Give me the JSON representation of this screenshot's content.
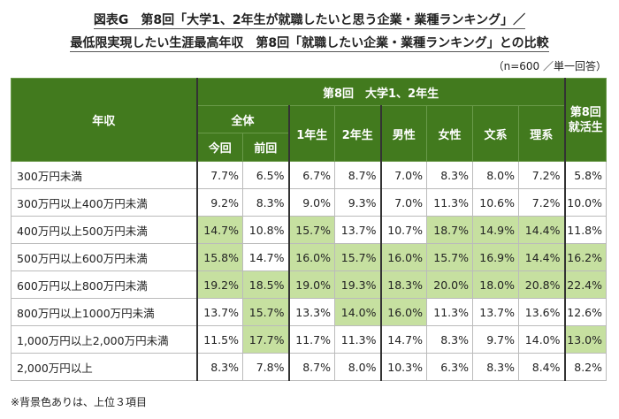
{
  "title_line1": "図表G　第8回「大学1、2年生が就職したいと思う企業・業種ランキング」／",
  "title_line2": "最低限実現したい生涯最高年収　第8回「就職したい企業・業種ランキング」との比較",
  "sample_note": "（n=600 ／単一回答）",
  "header": {
    "row_label": "年収",
    "group": "第8回　大学1、2年生",
    "overall": "全体",
    "current": "今回",
    "previous": "前回",
    "columns": [
      "1年生",
      "2年生",
      "男性",
      "女性",
      "文系",
      "理系"
    ],
    "job_hunting": "第8回就活生"
  },
  "colors": {
    "header": "#427a1e",
    "highlight": "#c6e0a0"
  },
  "rows": [
    {
      "label": "300万円未満",
      "values": [
        "7.7%",
        "6.5%",
        "6.7%",
        "8.7%",
        "7.0%",
        "8.3%",
        "8.0%",
        "7.2%",
        "5.8%"
      ],
      "highlight": [
        0,
        0,
        0,
        0,
        0,
        0,
        0,
        0,
        0
      ]
    },
    {
      "label": "300万円以上400万円未満",
      "values": [
        "9.2%",
        "8.3%",
        "9.0%",
        "9.3%",
        "7.0%",
        "11.3%",
        "10.6%",
        "7.2%",
        "10.0%"
      ],
      "highlight": [
        0,
        0,
        0,
        0,
        0,
        0,
        0,
        0,
        0
      ]
    },
    {
      "label": "400万円以上500万円未満",
      "values": [
        "14.7%",
        "10.8%",
        "15.7%",
        "13.7%",
        "10.7%",
        "18.7%",
        "14.9%",
        "14.4%",
        "11.8%"
      ],
      "highlight": [
        1,
        0,
        1,
        0,
        0,
        1,
        1,
        1,
        0
      ]
    },
    {
      "label": "500万円以上600万円未満",
      "values": [
        "15.8%",
        "14.7%",
        "16.0%",
        "15.7%",
        "16.0%",
        "15.7%",
        "16.9%",
        "14.4%",
        "16.2%"
      ],
      "highlight": [
        1,
        0,
        1,
        1,
        1,
        1,
        1,
        1,
        1
      ]
    },
    {
      "label": "600万円以上800万円未満",
      "values": [
        "19.2%",
        "18.5%",
        "19.0%",
        "19.3%",
        "18.3%",
        "20.0%",
        "18.0%",
        "20.8%",
        "22.4%"
      ],
      "highlight": [
        1,
        1,
        1,
        1,
        1,
        1,
        1,
        1,
        1
      ]
    },
    {
      "label": "800万円以上1000万円未満",
      "values": [
        "13.7%",
        "15.7%",
        "13.3%",
        "14.0%",
        "16.0%",
        "11.3%",
        "13.7%",
        "13.6%",
        "12.6%"
      ],
      "highlight": [
        0,
        1,
        0,
        1,
        1,
        0,
        0,
        0,
        0
      ]
    },
    {
      "label": "1,000万円以上2,000万円未満",
      "values": [
        "11.5%",
        "17.7%",
        "11.7%",
        "11.3%",
        "14.7%",
        "8.3%",
        "9.7%",
        "14.0%",
        "13.0%"
      ],
      "highlight": [
        0,
        1,
        0,
        0,
        0,
        0,
        0,
        0,
        1
      ]
    },
    {
      "label": "2,000万円以上",
      "values": [
        "8.3%",
        "7.8%",
        "8.7%",
        "8.0%",
        "10.3%",
        "6.3%",
        "8.3%",
        "8.4%",
        "8.2%"
      ],
      "highlight": [
        0,
        0,
        0,
        0,
        0,
        0,
        0,
        0,
        0
      ]
    }
  ],
  "footnote": "※背景色ありは、上位３項目"
}
